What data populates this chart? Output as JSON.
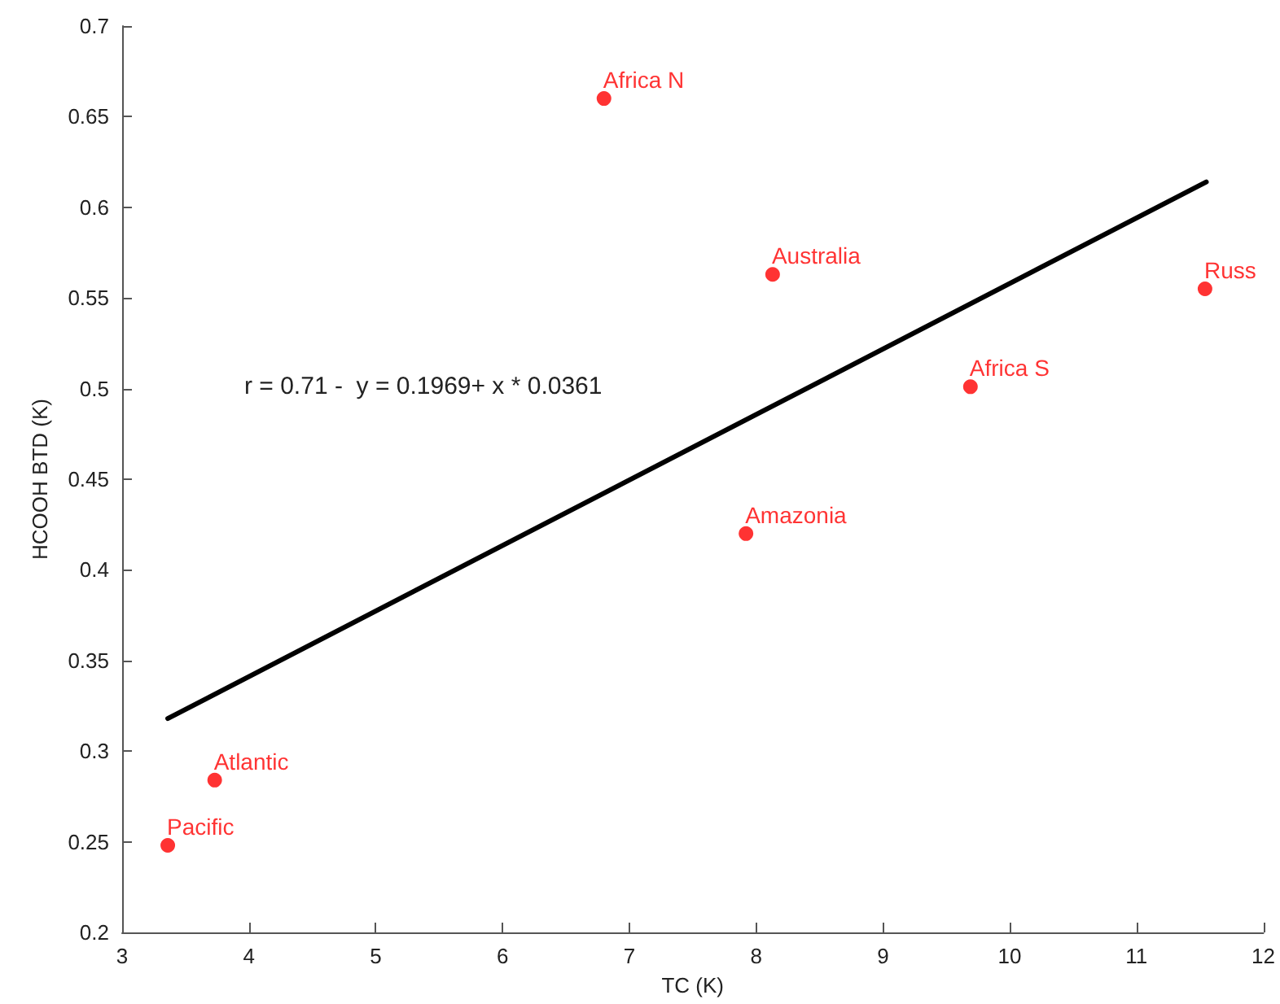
{
  "chart_data": {
    "type": "scatter",
    "xlabel": "TC (K)",
    "ylabel": "HCOOH BTD (K)",
    "xlim": [
      3,
      12
    ],
    "xticks": [
      3,
      4,
      5,
      6,
      7,
      8,
      9,
      10,
      11,
      12
    ],
    "ylim": [
      0.2,
      0.7
    ],
    "yticks": [
      0.2,
      0.25,
      0.3,
      0.35,
      0.4,
      0.45,
      0.5,
      0.55,
      0.6,
      0.65,
      0.7
    ],
    "grid": false,
    "marker": "circle",
    "annotations": [
      "r = 0.71 -  y = 0.1969+ x * 0.0361"
    ],
    "series": [
      {
        "color": "#ff0000",
        "x": [
          6.8,
          8.13,
          11.54,
          9.69,
          7.92,
          3.73,
          3.36
        ],
        "values": [
          0.66,
          0.563,
          0.555,
          0.501,
          0.42,
          0.284,
          0.248
        ],
        "value_labels": [
          "Africa N",
          "Australia",
          "Russ",
          "Africa S",
          "Amazonia",
          "Atlantic",
          "Pacific"
        ]
      },
      {
        "type": "line",
        "color": "#000000",
        "marker": "none",
        "line_style": "solid",
        "x": [
          3.36,
          11.55
        ],
        "values": [
          0.318,
          0.614
        ]
      }
    ]
  }
}
